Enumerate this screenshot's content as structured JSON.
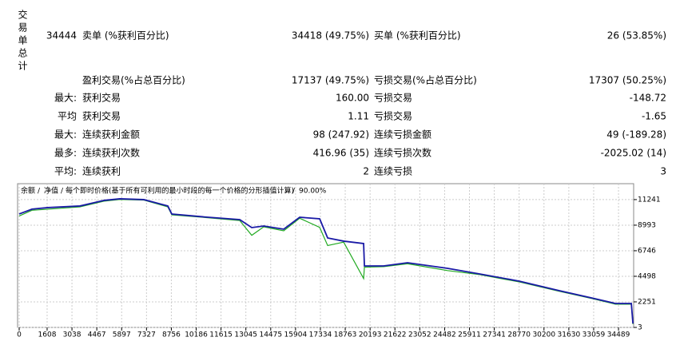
{
  "summary": {
    "title": "交易单总计",
    "total": "34444",
    "rows": [
      {
        "left_label": "卖单 (%获利百分比)",
        "left_value": "34418 (49.75%)",
        "right_label": "买单 (%获利百分比)",
        "right_value": "26 (53.85%)"
      },
      {
        "left_label": "盈利交易(%占总百分比)",
        "left_value": "17137 (49.75%)",
        "right_label": "亏损交易(%占总百分比)",
        "right_value": "17307 (50.25%)"
      },
      {
        "prefix": "最大:",
        "left_label": "获利交易",
        "left_value": "160.00",
        "right_label": "亏损交易",
        "right_value": "-148.72"
      },
      {
        "prefix": "平均",
        "left_label": "获利交易",
        "left_value": "1.11",
        "right_label": "亏损交易",
        "right_value": "-1.65"
      },
      {
        "prefix": "最大:",
        "left_label": "连续获利金额",
        "left_value": "98 (247.92)",
        "right_label": "连续亏损金额",
        "right_value": "49 (-189.28)"
      },
      {
        "prefix": "最多:",
        "left_label": "连续获利次数",
        "left_value": "416.96 (35)",
        "right_label": "连续亏损次数",
        "right_value": "-2025.02 (14)"
      },
      {
        "prefix": "平均:",
        "left_label": "连续获利",
        "left_value": "2",
        "right_label": "连续亏损",
        "right_value": "3"
      }
    ]
  },
  "chart_data": {
    "type": "line",
    "legend_note": "每个即时价格(基于所有可利用的最小时段的每一个价格的分形插值计算)",
    "quality": "90.00%",
    "x": [
      0,
      736,
      1656,
      3495,
      4875,
      5795,
      7174,
      8554,
      8784,
      10854,
      12693,
      13383,
      14073,
      15223,
      16142,
      17292,
      17752,
      18672,
      19821,
      19867,
      20971,
      22350,
      24650,
      26489,
      28789,
      31088,
      32928,
      34308,
      35227,
      35319
    ],
    "series": [
      {
        "name": "余额",
        "color": "#1a1aa6",
        "values": [
          9975,
          10400,
          10540,
          10680,
          11170,
          11310,
          11240,
          10680,
          9975,
          9690,
          9480,
          8780,
          8920,
          8640,
          9690,
          9550,
          7870,
          7590,
          7380,
          5410,
          5410,
          5690,
          5200,
          4710,
          4070,
          3230,
          2600,
          2110,
          2110,
          350
        ]
      },
      {
        "name": "净值",
        "color": "#22aa22",
        "values": [
          9800,
          10300,
          10400,
          10600,
          11100,
          11250,
          11200,
          10600,
          9900,
          9650,
          9400,
          8100,
          8850,
          8500,
          9600,
          8800,
          7200,
          7500,
          4300,
          5300,
          5350,
          5600,
          5000,
          4650,
          4000,
          3180,
          2550,
          2050,
          2050,
          300
        ]
      }
    ],
    "xlim": [
      0,
      35360
    ],
    "ylim": [
      3,
      12500
    ],
    "xticks": [
      0,
      1608,
      3038,
      4467,
      5897,
      7327,
      8756,
      10186,
      11615,
      13045,
      14475,
      15904,
      17334,
      18763,
      20193,
      21622,
      23052,
      24482,
      25911,
      27341,
      28770,
      30200,
      31630,
      33059,
      34489
    ],
    "yticks": [
      3,
      2251,
      4498,
      6746,
      8993,
      11241
    ],
    "grid": true
  }
}
